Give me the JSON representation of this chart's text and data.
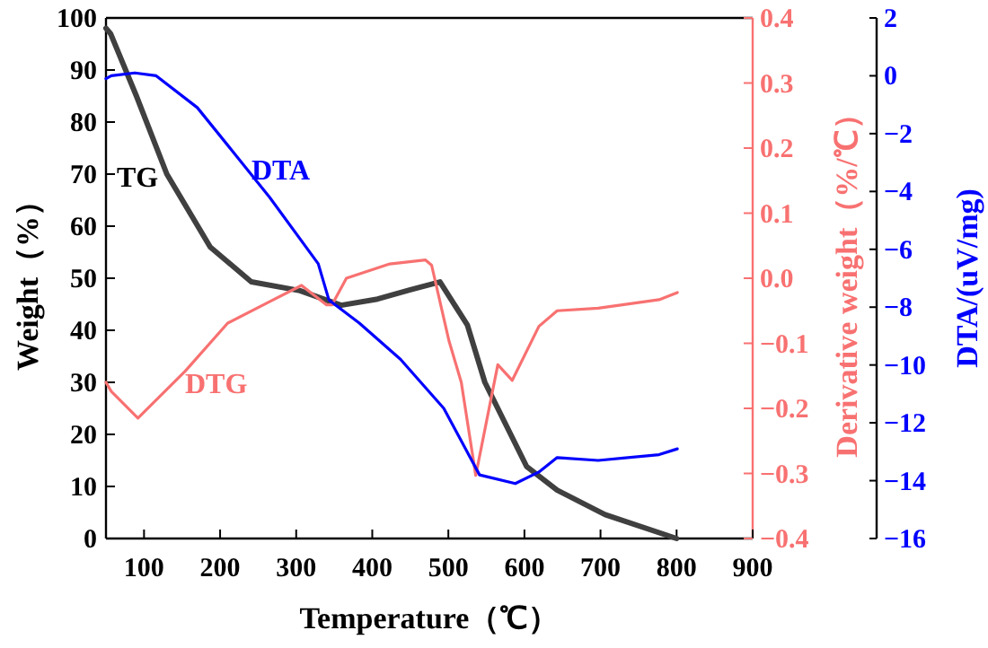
{
  "chart_data": {
    "type": "line",
    "xlabel": "Temperature（℃）",
    "ylabel": "Weight（%）",
    "y2label": "Derivative weight（%/℃）",
    "y3label": "DTA/(uV/mg)",
    "xlim": [
      50,
      900
    ],
    "xticks": [
      100,
      200,
      300,
      400,
      500,
      600,
      700,
      800,
      900
    ],
    "ylim": [
      0,
      100
    ],
    "yticks": [
      0,
      10,
      20,
      30,
      40,
      50,
      60,
      70,
      80,
      90,
      100
    ],
    "y2lim": [
      -0.4,
      0.4
    ],
    "y2ticks": [
      {
        "value": -0.4,
        "label": "−0.4"
      },
      {
        "value": -0.3,
        "label": "−0.3"
      },
      {
        "value": -0.2,
        "label": "−0.2"
      },
      {
        "value": -0.1,
        "label": "−0.1"
      },
      {
        "value": 0,
        "label": "0.0"
      },
      0.1,
      0.2,
      0.3,
      0.4
    ],
    "y3lim": [
      -16,
      2
    ],
    "y3ticks": [
      {
        "value": -16,
        "label": "−16"
      },
      {
        "value": -14,
        "label": "−14"
      },
      {
        "value": -12,
        "label": "−12"
      },
      {
        "value": -10,
        "label": "−10"
      },
      {
        "value": -8,
        "label": "−8"
      },
      {
        "value": -6,
        "label": "−6"
      },
      {
        "value": -4,
        "label": "−4"
      },
      {
        "value": -2,
        "label": "−2"
      },
      0,
      2
    ],
    "grid": false,
    "marker": "none",
    "line_style": "solid",
    "series": [
      {
        "name": "TG",
        "color": "#404040",
        "x": [
          50,
          56,
          90,
          130,
          187,
          241,
          305,
          359,
          407,
          450,
          489,
          525,
          548,
          603,
          643,
          706,
          800
        ],
        "values": [
          98,
          97,
          85,
          70,
          56,
          49.3,
          47.6,
          44.8,
          46,
          47.8,
          49.3,
          41,
          30,
          13.8,
          9.3,
          4.6,
          0
        ]
      },
      {
        "name": "DTG",
        "color": "#f87171",
        "axis": "y2",
        "x": [
          50,
          57,
          92,
          154,
          210,
          265,
          307,
          340,
          347,
          366,
          423,
          470,
          478,
          501,
          517,
          536,
          565,
          584,
          619,
          643,
          697,
          777,
          801
        ],
        "values": [
          -0.16,
          -0.174,
          -0.215,
          -0.143,
          -0.069,
          -0.036,
          -0.011,
          -0.041,
          -0.041,
          0,
          0.022,
          0.028,
          0.02,
          -0.097,
          -0.16,
          -0.303,
          -0.133,
          -0.157,
          -0.074,
          -0.05,
          -0.046,
          -0.033,
          -0.022
        ]
      },
      {
        "name": "DTA",
        "color": "#0000ff",
        "axis": "y3",
        "x": [
          50,
          57,
          88,
          116,
          170,
          218,
          265,
          329,
          343,
          383,
          437,
          494,
          541,
          588,
          619,
          643,
          697,
          777,
          801
        ],
        "values": [
          -0.1,
          0,
          0.1,
          0,
          -1.1,
          -2.66,
          -4.2,
          -6.5,
          -7.75,
          -8.55,
          -9.8,
          -11.5,
          -13.8,
          -14.1,
          -13.7,
          -13.2,
          -13.3,
          -13.1,
          -12.9
        ]
      }
    ]
  }
}
